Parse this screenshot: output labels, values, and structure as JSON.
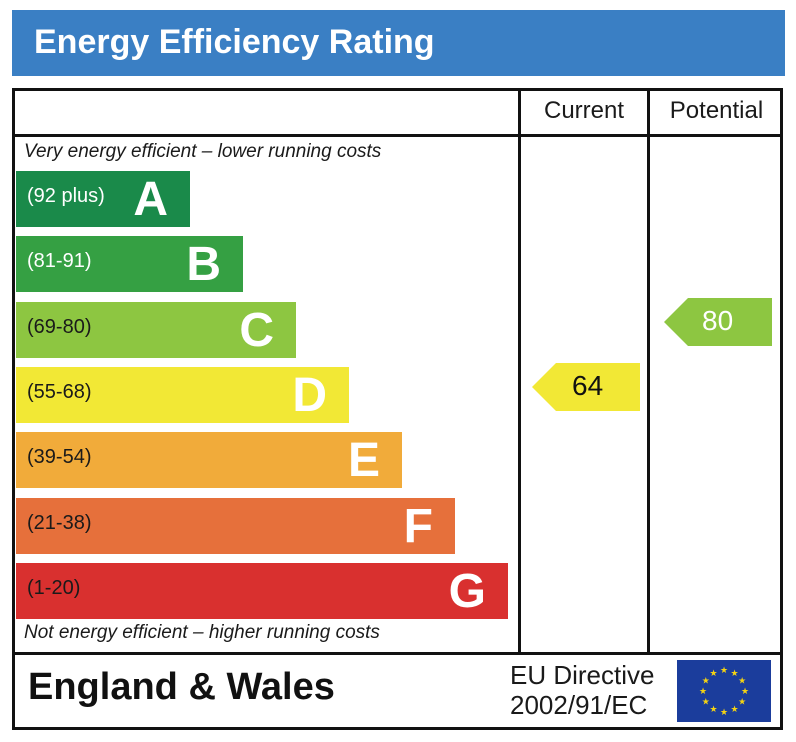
{
  "title": "Energy Efficiency Rating",
  "columns": {
    "current": "Current",
    "potential": "Potential"
  },
  "top_note": "Very energy efficient – lower running costs",
  "bottom_note": "Not energy efficient – higher running costs",
  "footer": {
    "region": "England & Wales",
    "directive_line1": "EU Directive",
    "directive_line2": "2002/91/EC",
    "flag": "eu-flag"
  },
  "chart_data": {
    "type": "bar",
    "title": "Energy Efficiency Rating",
    "bands": [
      {
        "letter": "A",
        "range": "(92 plus)",
        "color": "#1a8a4a",
        "range_color": "#ffffff"
      },
      {
        "letter": "B",
        "range": "(81-91)",
        "color": "#35a043",
        "range_color": "#ffffff"
      },
      {
        "letter": "C",
        "range": "(69-80)",
        "color": "#8dc641",
        "range_color": "#1a1a1a"
      },
      {
        "letter": "D",
        "range": "(55-68)",
        "color": "#f2e835",
        "range_color": "#1a1a1a"
      },
      {
        "letter": "E",
        "range": "(39-54)",
        "color": "#f1ab3a",
        "range_color": "#1a1a1a"
      },
      {
        "letter": "F",
        "range": "(21-38)",
        "color": "#e6703b",
        "range_color": "#1a1a1a"
      },
      {
        "letter": "G",
        "range": "(1-20)",
        "color": "#d9302f",
        "range_color": "#1a1a1a"
      }
    ],
    "current": {
      "value": 64,
      "band": "D",
      "color": "#f2e835",
      "text_color": "#111111"
    },
    "potential": {
      "value": 80,
      "band": "C",
      "color": "#8dc641",
      "text_color": "#ffffff"
    }
  }
}
